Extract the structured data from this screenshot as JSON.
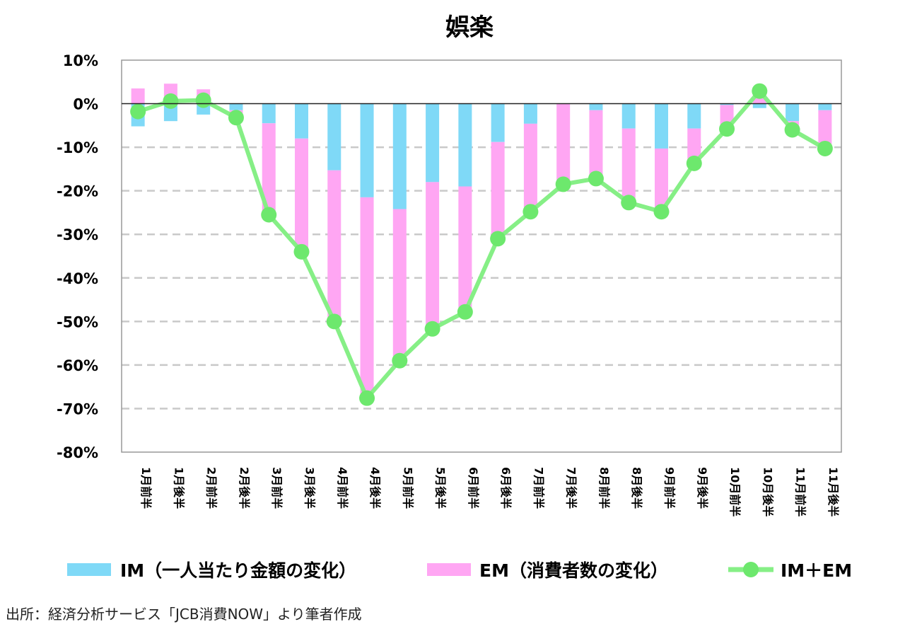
{
  "colors": {
    "im": "#7fd9f7",
    "em": "#ffa6f3",
    "total": "#86ef86",
    "total_point": "#6de86d",
    "grid": "#c9c9c9",
    "axis": "#999999"
  },
  "chart_data": {
    "type": "bar",
    "stacked": true,
    "title": "娯楽",
    "xlabel": "",
    "ylabel": "",
    "ylim": [
      -80,
      10
    ],
    "yticks": [
      10,
      0,
      -10,
      -20,
      -30,
      -40,
      -50,
      -60,
      -70,
      -80
    ],
    "ytick_labels": [
      "10%",
      "0%",
      "-10%",
      "-20%",
      "-30%",
      "-40%",
      "-50%",
      "-60%",
      "-70%",
      "-80%"
    ],
    "grid": true,
    "legend_position": "bottom",
    "categories": [
      "1月前半",
      "1月後半",
      "2月前半",
      "2月後半",
      "3月前半",
      "3月後半",
      "4月前半",
      "4月後半",
      "5月前半",
      "5月後半",
      "6月前半",
      "6月後半",
      "7月前半",
      "7月後半",
      "8月前半",
      "8月後半",
      "9月前半",
      "9月後半",
      "10月前半",
      "10月後半",
      "11月前半",
      "11月後半"
    ],
    "series": [
      {
        "name": "IM（一人当たり金額の変化）",
        "type": "bar",
        "values": [
          -5.2,
          -4.0,
          -2.5,
          -1.5,
          -4.5,
          -8.0,
          -15.3,
          -21.5,
          -24.2,
          -18.0,
          -19.0,
          -8.8,
          -4.6,
          0.0,
          -1.5,
          -5.7,
          -10.3,
          -5.7,
          -0.3,
          -1.0,
          -4.0,
          -1.5
        ]
      },
      {
        "name": "EM（消費者数の変化）",
        "type": "bar",
        "values": [
          3.5,
          4.6,
          3.3,
          -1.7,
          -21.0,
          -26.0,
          -34.7,
          -46.2,
          -34.8,
          -33.7,
          -28.8,
          -22.2,
          -20.2,
          -18.5,
          -15.7,
          -17.0,
          -14.5,
          -8.0,
          -5.5,
          3.8,
          -2.0,
          -8.8
        ]
      },
      {
        "name": "IM＋EM",
        "type": "line",
        "values": [
          -1.8,
          0.6,
          0.8,
          -3.2,
          -25.5,
          -34.0,
          -50.0,
          -67.6,
          -59.0,
          -51.7,
          -47.8,
          -31.0,
          -24.8,
          -18.5,
          -17.2,
          -22.7,
          -24.8,
          -13.7,
          -5.8,
          2.9,
          -6.0,
          -10.3
        ]
      }
    ]
  },
  "source_note": "出所：経済分析サービス「JCB消費NOW」より筆者作成"
}
